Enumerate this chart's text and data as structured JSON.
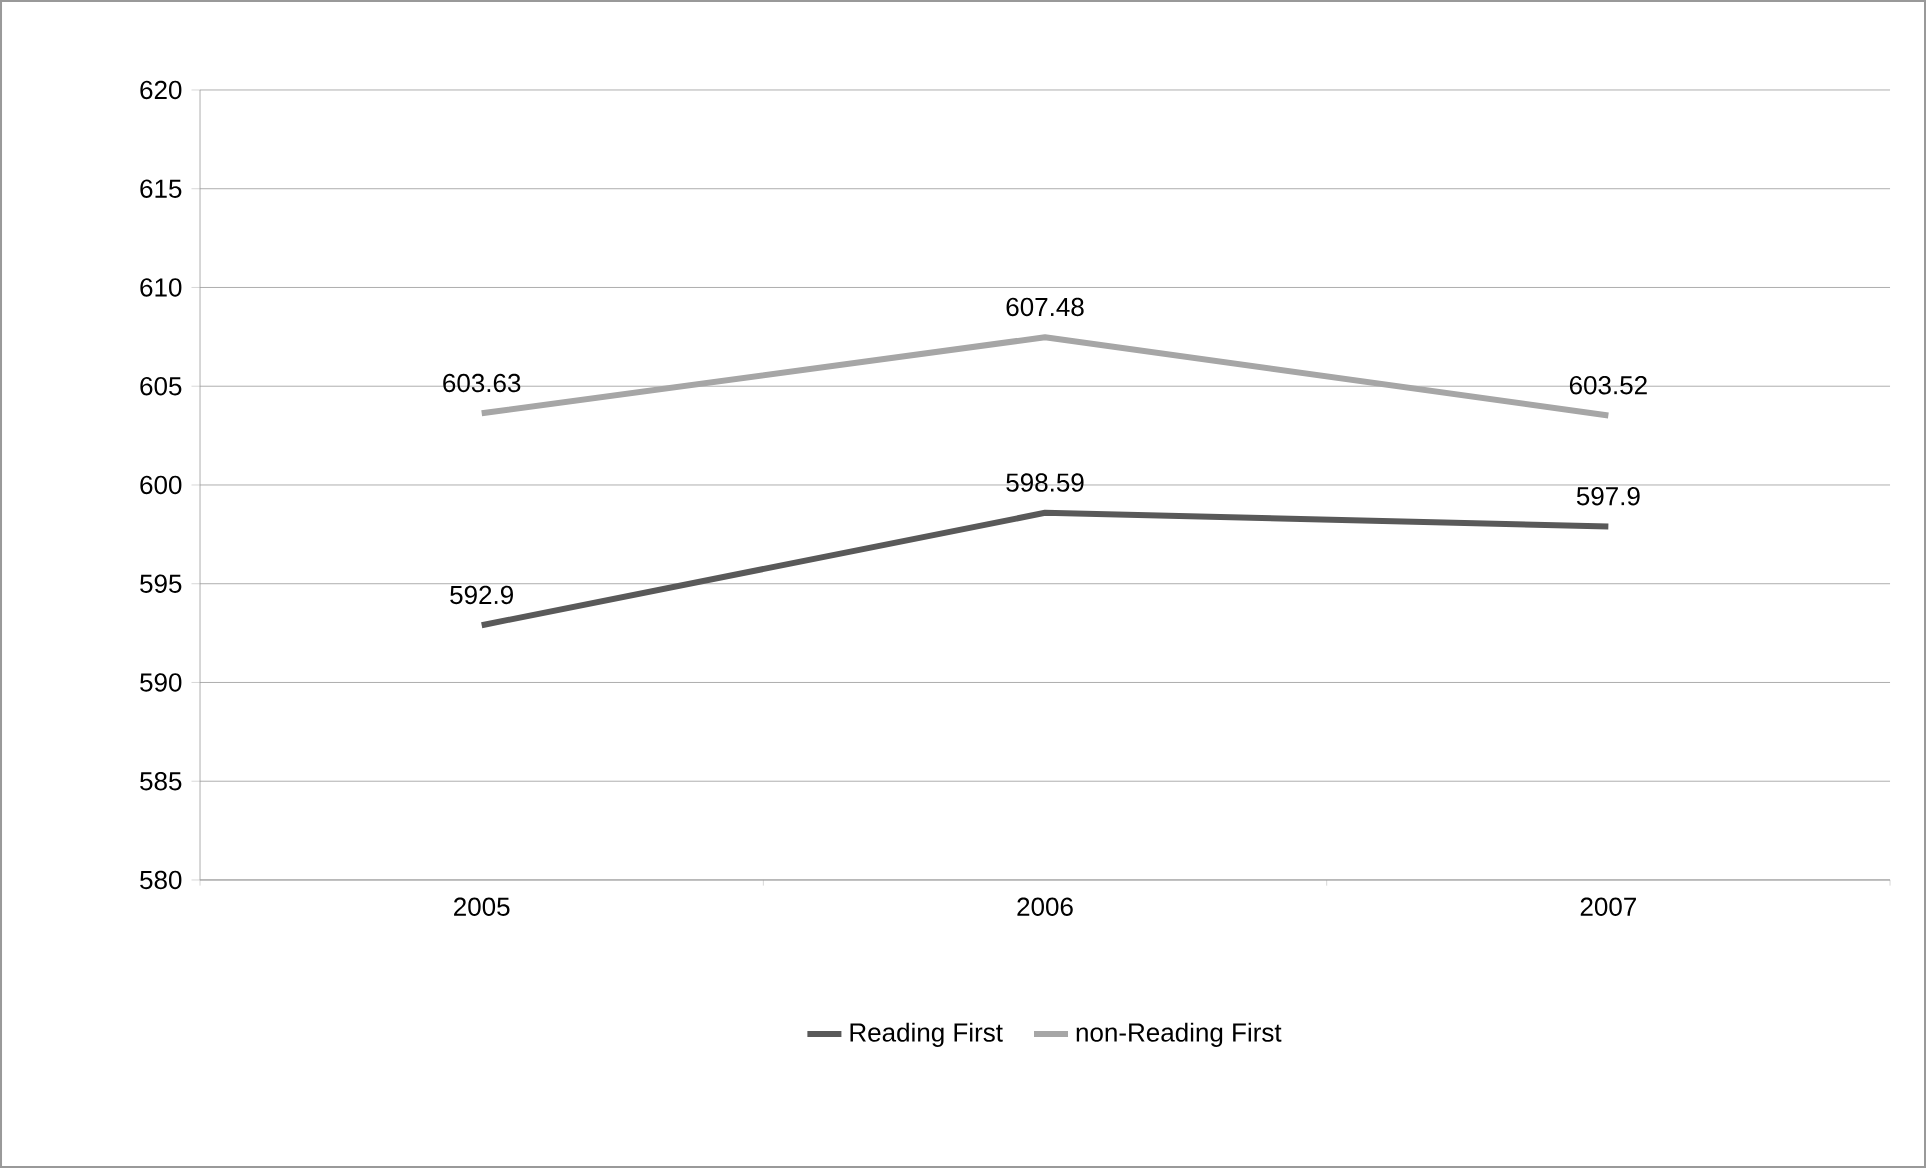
{
  "chart_data": {
    "type": "line",
    "categories": [
      "2005",
      "2006",
      "2007"
    ],
    "series": [
      {
        "name": "Reading First",
        "color": "#595959",
        "values": [
          592.9,
          598.59,
          597.9
        ]
      },
      {
        "name": "non-Reading First",
        "color": "#a6a6a6",
        "values": [
          603.63,
          607.48,
          603.52
        ]
      }
    ],
    "ylim": [
      580,
      620
    ],
    "yticks": [
      580,
      585,
      590,
      595,
      600,
      605,
      610,
      615,
      620
    ],
    "grid": "y",
    "legend": "bottom",
    "data_labels": true,
    "marker": "none",
    "line_style": "solid"
  }
}
